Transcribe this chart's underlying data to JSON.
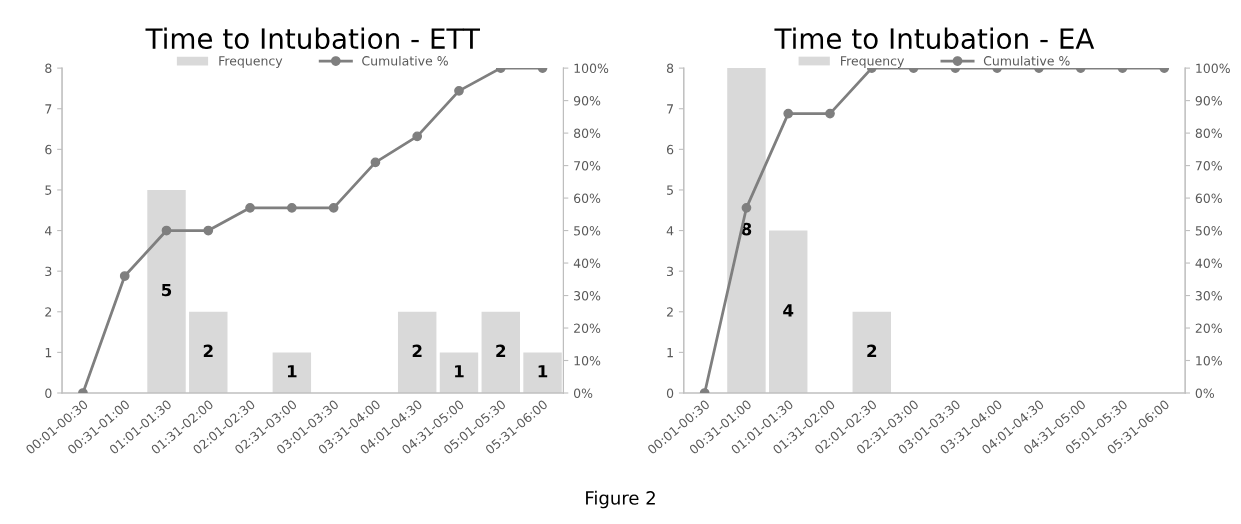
{
  "chart_data": [
    {
      "type": "bar",
      "title": "Time to Intubation - ETT",
      "categories": [
        "00:01-00:30",
        "00:31-01:00",
        "01:01-01:30",
        "01:31-02:00",
        "02:01-02:30",
        "02:31-03:00",
        "03:01-03:30",
        "03:31-04:00",
        "04:01-04:30",
        "04:31-05:00",
        "05:01-05:30",
        "05:31-06:00"
      ],
      "series": [
        {
          "name": "Frequency",
          "type": "bar",
          "color": "#d9d9d9",
          "values": [
            0,
            0,
            5,
            2,
            0,
            1,
            0,
            0,
            2,
            1,
            2,
            1
          ],
          "value_labels": [
            null,
            null,
            "5",
            "2",
            null,
            "1",
            null,
            null,
            "2",
            "1",
            "2",
            "1"
          ]
        },
        {
          "name": "Cumulative %",
          "type": "line",
          "axis": "y2",
          "color": "#7f7f7f",
          "values": [
            0,
            36,
            50,
            50,
            57,
            57,
            57,
            71,
            79,
            93,
            100,
            100
          ]
        }
      ],
      "ylim": [
        0,
        8
      ],
      "yticks": [
        0,
        1,
        2,
        3,
        4,
        5,
        6,
        7,
        8
      ],
      "y2lim": [
        0,
        100
      ],
      "y2ticks": [
        {
          "value": 0,
          "label": "0%"
        },
        {
          "value": 10,
          "label": "10%"
        },
        {
          "value": 20,
          "label": "20%"
        },
        {
          "value": 30,
          "label": "30%"
        },
        {
          "value": 40,
          "label": "40%"
        },
        {
          "value": 50,
          "label": "50%"
        },
        {
          "value": 60,
          "label": "60%"
        },
        {
          "value": 70,
          "label": "70%"
        },
        {
          "value": 80,
          "label": "80%"
        },
        {
          "value": 90,
          "label": "90%"
        },
        {
          "value": 100,
          "label": "100%"
        }
      ],
      "marker": "circle",
      "legend": "top",
      "grid": false,
      "annotations": [
        "Figure 2"
      ]
    },
    {
      "type": "bar",
      "title": "Time to Intubation - EA",
      "categories": [
        "00:01-00:30",
        "00:31-01:00",
        "01:01-01:30",
        "01:31-02:00",
        "02:01-02:30",
        "02:31-03:00",
        "03:01-03:30",
        "03:31-04:00",
        "04:01-04:30",
        "04:31-05:00",
        "05:01-05:30",
        "05:31-06:00"
      ],
      "series": [
        {
          "name": "Frequency",
          "type": "bar",
          "color": "#d9d9d9",
          "values": [
            0,
            8,
            4,
            0,
            2,
            0,
            0,
            0,
            0,
            0,
            0,
            0
          ],
          "value_labels": [
            null,
            "8",
            "4",
            null,
            "2",
            null,
            null,
            null,
            null,
            null,
            null,
            null
          ]
        },
        {
          "name": "Cumulative %",
          "type": "line",
          "axis": "y2",
          "color": "#7f7f7f",
          "values": [
            0,
            57,
            86,
            86,
            100,
            100,
            100,
            100,
            100,
            100,
            100,
            100
          ]
        }
      ],
      "ylim": [
        0,
        8
      ],
      "yticks": [
        0,
        1,
        2,
        3,
        4,
        5,
        6,
        7,
        8
      ],
      "y2lim": [
        0,
        100
      ],
      "y2ticks": [
        {
          "value": 0,
          "label": "0%"
        },
        {
          "value": 10,
          "label": "10%"
        },
        {
          "value": 20,
          "label": "20%"
        },
        {
          "value": 30,
          "label": "30%"
        },
        {
          "value": 40,
          "label": "40%"
        },
        {
          "value": 50,
          "label": "50%"
        },
        {
          "value": 60,
          "label": "60%"
        },
        {
          "value": 70,
          "label": "70%"
        },
        {
          "value": 80,
          "label": "80%"
        },
        {
          "value": 90,
          "label": "90%"
        },
        {
          "value": 100,
          "label": "100%"
        }
      ],
      "marker": "circle",
      "legend": "top",
      "grid": false
    }
  ]
}
